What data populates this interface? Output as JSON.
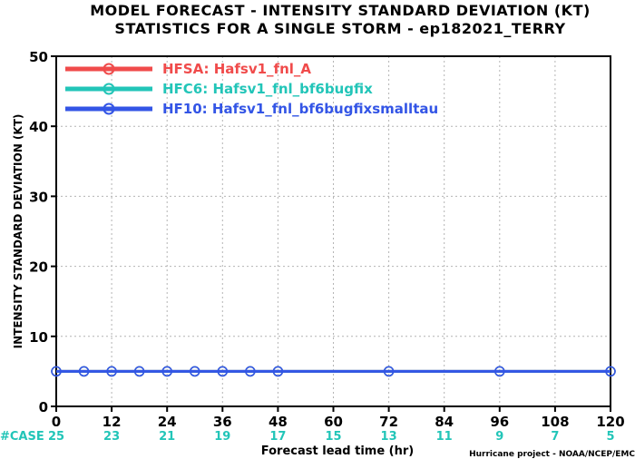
{
  "chart_data": {
    "type": "line",
    "title_line1": "MODEL FORECAST - INTENSITY STANDARD DEVIATION (KT)",
    "title_line2": "STATISTICS FOR A SINGLE STORM - ep182021_TERRY",
    "xlabel": "Forecast lead time (hr)",
    "ylabel": "INTENSITY STANDARD DEVIATION (KT)",
    "xlim": [
      0,
      120
    ],
    "ylim": [
      0,
      50
    ],
    "xticks": [
      0,
      12,
      24,
      36,
      48,
      60,
      72,
      84,
      96,
      108,
      120
    ],
    "yticks": [
      0,
      10,
      20,
      30,
      40,
      50
    ],
    "grid": true,
    "legend_position": "top-left",
    "series": [
      {
        "name": "HFSA: Hafsv1_fnl_A",
        "color": "#f04b4b",
        "x": [
          0,
          6,
          12,
          18,
          24,
          30,
          36,
          42,
          48,
          72,
          96,
          120
        ],
        "values": [
          5,
          5,
          5,
          5,
          5,
          5,
          5,
          5,
          5,
          5,
          5,
          5
        ]
      },
      {
        "name": "HFC6: Hafsv1_fnl_bf6bugfix",
        "color": "#22c5b8",
        "x": [
          0,
          6,
          12,
          18,
          24,
          30,
          36,
          42,
          48,
          72,
          96,
          120
        ],
        "values": [
          5,
          5,
          5,
          5,
          5,
          5,
          5,
          5,
          5,
          5,
          5,
          5
        ]
      },
      {
        "name": "HF10: Hafsv1_fnl_bf6bugfixsmalltau",
        "color": "#3355e6",
        "x": [
          0,
          6,
          12,
          18,
          24,
          30,
          36,
          42,
          48,
          72,
          96,
          120
        ],
        "values": [
          5,
          5,
          5,
          5,
          5,
          5,
          5,
          5,
          5,
          5,
          5,
          5
        ]
      }
    ],
    "case_label": "#CASE",
    "case_label_color": "#22c5b8",
    "cases": [
      {
        "x": 0,
        "n": "25"
      },
      {
        "x": 12,
        "n": "23"
      },
      {
        "x": 24,
        "n": "21"
      },
      {
        "x": 36,
        "n": "19"
      },
      {
        "x": 48,
        "n": "17"
      },
      {
        "x": 60,
        "n": "15"
      },
      {
        "x": 72,
        "n": "13"
      },
      {
        "x": 84,
        "n": "11"
      },
      {
        "x": 96,
        "n": "9"
      },
      {
        "x": 108,
        "n": "7"
      },
      {
        "x": 120,
        "n": "5"
      }
    ],
    "credit": "Hurricane project - NOAA/NCEP/EMC"
  }
}
